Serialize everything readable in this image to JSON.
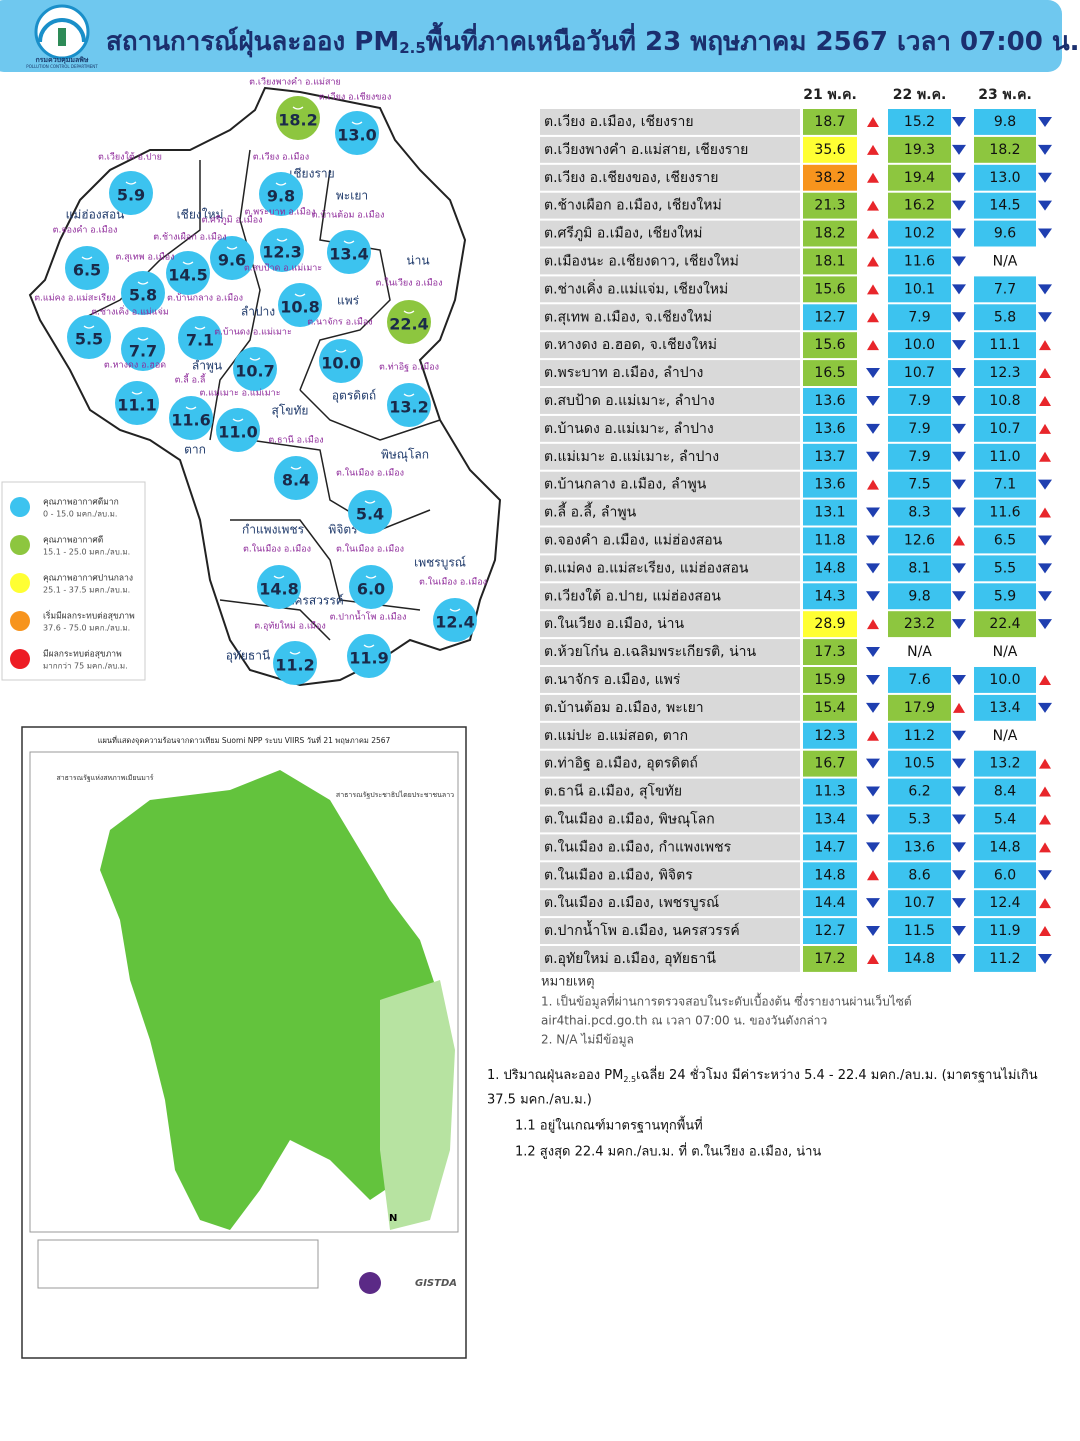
{
  "header": {
    "org_th": "กรมควบคุมมลพิษ",
    "org_en": "POLLUTION CONTROL DEPARTMENT",
    "title_pre": "สถานการณ์ฝุ่นละออง PM",
    "title_sub": "2.5",
    "title_post": "พื้นที่ภาคเหนือวันที่ 23 พฤษภาคม 2567 เวลา 07:00 น."
  },
  "provinces": [
    "เชียงราย",
    "พะเยา",
    "แม่ฮ่องสอน",
    "เชียงใหม่",
    "น่าน",
    "ลำปาง",
    "แพร่",
    "ลำพูน",
    "อุตรดิตถ์",
    "สุโขทัย",
    "ตาก",
    "พิษณุโลก",
    "กำแพงเพชร",
    "พิจิตร",
    "เพชรบูรณ์",
    "นครสวรรค์",
    "อุทัยธานี"
  ],
  "stations": [
    {
      "label": "ต.เวียงพางคำ อ.แม่สาย",
      "value": "18.2",
      "color": "#8dc63f"
    },
    {
      "label": "ต.เวียง อ.เชียงของ",
      "value": "13.0",
      "color": "#3cc3ef"
    },
    {
      "label": "ต.เวียงใต้ อ.ปาย",
      "value": "5.9",
      "color": "#3cc3ef"
    },
    {
      "label": "ต.เวียง อ.เมือง",
      "value": "9.8",
      "color": "#3cc3ef"
    },
    {
      "label": "ต.พระบาท อ.เมือง",
      "value": "12.3",
      "color": "#3cc3ef"
    },
    {
      "label": "ต.บ้านต้อม อ.เมือง",
      "value": "13.4",
      "color": "#3cc3ef"
    },
    {
      "label": "ต.ศรีภูมิ อ.เมือง",
      "value": "9.6",
      "color": "#3cc3ef"
    },
    {
      "label": "ต.ช้างเผือก อ.เมือง",
      "value": "14.5",
      "color": "#3cc3ef"
    },
    {
      "label": "ต.จองคำ อ.เมือง",
      "value": "6.5",
      "color": "#3cc3ef"
    },
    {
      "label": "ต.สุเทพ อ.เมือง",
      "value": "5.8",
      "color": "#3cc3ef"
    },
    {
      "label": "ต.สบป้าด อ.แม่เมาะ",
      "value": "10.8",
      "color": "#3cc3ef"
    },
    {
      "label": "ต.ในเวียง อ.เมือง",
      "value": "22.4",
      "color": "#8dc63f"
    },
    {
      "label": "ต.แม่คง อ.แม่สะเรียง",
      "value": "5.5",
      "color": "#3cc3ef"
    },
    {
      "label": "ต.บ้านกลาง อ.เมือง",
      "value": "7.1",
      "color": "#3cc3ef"
    },
    {
      "label": "ต.ช่างเคิ่ง อ.แม่แจ่ม",
      "value": "7.7",
      "color": "#3cc3ef"
    },
    {
      "label": "ต.นาจักร อ.เมือง",
      "value": "10.0",
      "color": "#3cc3ef"
    },
    {
      "label": "ต.บ้านดง อ.แม่เมาะ",
      "value": "10.7",
      "color": "#3cc3ef"
    },
    {
      "label": "ต.ท่าอิฐ อ.เมือง",
      "value": "13.2",
      "color": "#3cc3ef"
    },
    {
      "label": "ต.หางดง อ.ฮอด",
      "value": "11.1",
      "color": "#3cc3ef"
    },
    {
      "label": "ต.ลี้ อ.ลี้",
      "value": "11.6",
      "color": "#3cc3ef"
    },
    {
      "label": "ต.แม่เมาะ อ.แม่เมาะ",
      "value": "11.0",
      "color": "#3cc3ef"
    },
    {
      "label": "ต.ธานี อ.เมือง",
      "value": "8.4",
      "color": "#3cc3ef"
    },
    {
      "label": "ต.ในเมือง อ.เมือง",
      "value": "5.4",
      "color": "#3cc3ef"
    },
    {
      "label": "ต.ในเมือง อ.เมือง",
      "value": "14.8",
      "color": "#3cc3ef"
    },
    {
      "label": "ต.ในเมือง อ.เมือง",
      "value": "6.0",
      "color": "#3cc3ef"
    },
    {
      "label": "ต.ในเมือง อ.เมือง",
      "value": "12.4",
      "color": "#3cc3ef"
    },
    {
      "label": "ต.ปากน้ำโพ อ.เมือง",
      "value": "11.9",
      "color": "#3cc3ef"
    },
    {
      "label": "ต.อุทัยใหม่ อ.เมือง",
      "value": "11.2",
      "color": "#3cc3ef"
    }
  ],
  "legend": [
    {
      "title": "คุณภาพอากาศดีมาก",
      "range": "0 - 15.0 มคก./ลบ.ม.",
      "color": "#3cc3ef"
    },
    {
      "title": "คุณภาพอากาศดี",
      "range": "15.1 - 25.0 มคก./ลบ.ม.",
      "color": "#8dc63f"
    },
    {
      "title": "คุณภาพอากาศปานกลาง",
      "range": "25.1 - 37.5 มคก./ลบ.ม.",
      "color": "#ffff33"
    },
    {
      "title": "เริ่มมีผลกระทบต่อสุขภาพ",
      "range": "37.6 - 75.0 มคก./ลบ.ม.",
      "color": "#f7941d"
    },
    {
      "title": "มีผลกระทบต่อสุขภาพ",
      "range": "มากกว่า 75 มคก./ลบ.ม.",
      "color": "#ed1c24"
    }
  ],
  "table": {
    "headers": [
      "21 พ.ค.",
      "22 พ.ค.",
      "23 พ.ค."
    ],
    "rows": [
      {
        "name": "ต.เวียง อ.เมือง, เชียงราย",
        "values": [
          "18.7",
          "15.2",
          "9.8"
        ],
        "colors": [
          "#8dc63f",
          "#3cc3ef",
          "#3cc3ef"
        ],
        "trends": [
          "up",
          "down",
          "down"
        ]
      },
      {
        "name": "ต.เวียงพางคำ อ.แม่สาย, เชียงราย",
        "values": [
          "35.6",
          "19.3",
          "18.2"
        ],
        "colors": [
          "#ffff33",
          "#8dc63f",
          "#8dc63f"
        ],
        "trends": [
          "up",
          "down",
          "down"
        ]
      },
      {
        "name": "ต.เวียง อ.เชียงของ, เชียงราย",
        "values": [
          "38.2",
          "19.4",
          "13.0"
        ],
        "colors": [
          "#f7941d",
          "#8dc63f",
          "#3cc3ef"
        ],
        "trends": [
          "up",
          "down",
          "down"
        ]
      },
      {
        "name": "ต.ช้างเผือก อ.เมือง, เชียงใหม่",
        "values": [
          "21.3",
          "16.2",
          "14.5"
        ],
        "colors": [
          "#8dc63f",
          "#8dc63f",
          "#3cc3ef"
        ],
        "trends": [
          "up",
          "down",
          "down"
        ]
      },
      {
        "name": "ต.ศรีภูมิ อ.เมือง, เชียงใหม่",
        "values": [
          "18.2",
          "10.2",
          "9.6"
        ],
        "colors": [
          "#8dc63f",
          "#3cc3ef",
          "#3cc3ef"
        ],
        "trends": [
          "up",
          "down",
          "down"
        ]
      },
      {
        "name": "ต.เมืองนะ อ.เชียงดาว, เชียงใหม่",
        "values": [
          "18.1",
          "11.6",
          "N/A"
        ],
        "colors": [
          "#8dc63f",
          "#3cc3ef",
          "#ffffff"
        ],
        "trends": [
          "up",
          "down",
          null
        ]
      },
      {
        "name": "ต.ช่างเคิ่ง อ.แม่แจ่ม, เชียงใหม่",
        "values": [
          "15.6",
          "10.1",
          "7.7"
        ],
        "colors": [
          "#8dc63f",
          "#3cc3ef",
          "#3cc3ef"
        ],
        "trends": [
          "up",
          "down",
          "down"
        ]
      },
      {
        "name": "ต.สุเทพ  อ.เมือง, จ.เชียงใหม่",
        "values": [
          "12.7",
          "7.9",
          "5.8"
        ],
        "colors": [
          "#3cc3ef",
          "#3cc3ef",
          "#3cc3ef"
        ],
        "trends": [
          "up",
          "down",
          "down"
        ]
      },
      {
        "name": "ต.หางดง อ.ฮอด, จ.เชียงใหม่",
        "values": [
          "15.6",
          "10.0",
          "11.1"
        ],
        "colors": [
          "#8dc63f",
          "#3cc3ef",
          "#3cc3ef"
        ],
        "trends": [
          "up",
          "down",
          "up"
        ]
      },
      {
        "name": "ต.พระบาท อ.เมือง, ลำปาง",
        "values": [
          "16.5",
          "10.7",
          "12.3"
        ],
        "colors": [
          "#8dc63f",
          "#3cc3ef",
          "#3cc3ef"
        ],
        "trends": [
          "down",
          "down",
          "up"
        ]
      },
      {
        "name": "ต.สบป้าด อ.แม่เมาะ, ลำปาง",
        "values": [
          "13.6",
          "7.9",
          "10.8"
        ],
        "colors": [
          "#3cc3ef",
          "#3cc3ef",
          "#3cc3ef"
        ],
        "trends": [
          "down",
          "down",
          "up"
        ]
      },
      {
        "name": "ต.บ้านดง อ.แม่เมาะ, ลำปาง",
        "values": [
          "13.6",
          "7.9",
          "10.7"
        ],
        "colors": [
          "#3cc3ef",
          "#3cc3ef",
          "#3cc3ef"
        ],
        "trends": [
          "down",
          "down",
          "up"
        ]
      },
      {
        "name": "ต.แม่เมาะ อ.แม่เมาะ, ลำปาง",
        "values": [
          "13.7",
          "7.9",
          "11.0"
        ],
        "colors": [
          "#3cc3ef",
          "#3cc3ef",
          "#3cc3ef"
        ],
        "trends": [
          "down",
          "down",
          "up"
        ]
      },
      {
        "name": "ต.บ้านกลาง อ.เมือง, ลำพูน",
        "values": [
          "13.6",
          "7.5",
          "7.1"
        ],
        "colors": [
          "#3cc3ef",
          "#3cc3ef",
          "#3cc3ef"
        ],
        "trends": [
          "up",
          "down",
          "down"
        ]
      },
      {
        "name": "ต.ลี้ อ.ลี้, ลำพูน",
        "values": [
          "13.1",
          "8.3",
          "11.6"
        ],
        "colors": [
          "#3cc3ef",
          "#3cc3ef",
          "#3cc3ef"
        ],
        "trends": [
          "down",
          "down",
          "up"
        ]
      },
      {
        "name": "ต.จองคำ อ.เมือง, แม่ฮ่องสอน",
        "values": [
          "11.8",
          "12.6",
          "6.5"
        ],
        "colors": [
          "#3cc3ef",
          "#3cc3ef",
          "#3cc3ef"
        ],
        "trends": [
          "down",
          "up",
          "down"
        ]
      },
      {
        "name": "ต.แม่คง อ.แม่สะเรียง, แม่ฮ่องสอน",
        "values": [
          "14.8",
          "8.1",
          "5.5"
        ],
        "colors": [
          "#3cc3ef",
          "#3cc3ef",
          "#3cc3ef"
        ],
        "trends": [
          "down",
          "down",
          "down"
        ]
      },
      {
        "name": "ต.เวียงใต้ อ.ปาย, แม่ฮ่องสอน",
        "values": [
          "14.3",
          "9.8",
          "5.9"
        ],
        "colors": [
          "#3cc3ef",
          "#3cc3ef",
          "#3cc3ef"
        ],
        "trends": [
          "down",
          "down",
          "down"
        ]
      },
      {
        "name": "ต.ในเวียง อ.เมือง, น่าน",
        "values": [
          "28.9",
          "23.2",
          "22.4"
        ],
        "colors": [
          "#ffff33",
          "#8dc63f",
          "#8dc63f"
        ],
        "trends": [
          "up",
          "down",
          "down"
        ]
      },
      {
        "name": "ต.ห้วยโก๋น อ.เฉลิมพระเกียรติ, น่าน",
        "values": [
          "17.3",
          "N/A",
          "N/A"
        ],
        "colors": [
          "#8dc63f",
          "#ffffff",
          "#ffffff"
        ],
        "trends": [
          "down",
          null,
          null
        ]
      },
      {
        "name": "ต.นาจักร อ.เมือง, แพร่",
        "values": [
          "15.9",
          "7.6",
          "10.0"
        ],
        "colors": [
          "#8dc63f",
          "#3cc3ef",
          "#3cc3ef"
        ],
        "trends": [
          "down",
          "down",
          "up"
        ]
      },
      {
        "name": "ต.บ้านต้อม อ.เมือง, พะเยา",
        "values": [
          "15.4",
          "17.9",
          "13.4"
        ],
        "colors": [
          "#8dc63f",
          "#8dc63f",
          "#3cc3ef"
        ],
        "trends": [
          "down",
          "up",
          "down"
        ]
      },
      {
        "name": "ต.แม่ปะ อ.แม่สอด, ตาก",
        "values": [
          "12.3",
          "11.2",
          "N/A"
        ],
        "colors": [
          "#3cc3ef",
          "#3cc3ef",
          "#ffffff"
        ],
        "trends": [
          "up",
          "down",
          null
        ]
      },
      {
        "name": "ต.ท่าอิฐ อ.เมือง, อุตรดิตถ์",
        "values": [
          "16.7",
          "10.5",
          "13.2"
        ],
        "colors": [
          "#8dc63f",
          "#3cc3ef",
          "#3cc3ef"
        ],
        "trends": [
          "down",
          "down",
          "up"
        ]
      },
      {
        "name": "ต.ธานี อ.เมือง, สุโขทัย",
        "values": [
          "11.3",
          "6.2",
          "8.4"
        ],
        "colors": [
          "#3cc3ef",
          "#3cc3ef",
          "#3cc3ef"
        ],
        "trends": [
          "down",
          "down",
          "up"
        ]
      },
      {
        "name": "ต.ในเมือง อ.เมือง, พิษณุโลก",
        "values": [
          "13.4",
          "5.3",
          "5.4"
        ],
        "colors": [
          "#3cc3ef",
          "#3cc3ef",
          "#3cc3ef"
        ],
        "trends": [
          "down",
          "down",
          "up"
        ]
      },
      {
        "name": "ต.ในเมือง อ.เมือง, กำแพงเพชร",
        "values": [
          "14.7",
          "13.6",
          "14.8"
        ],
        "colors": [
          "#3cc3ef",
          "#3cc3ef",
          "#3cc3ef"
        ],
        "trends": [
          "down",
          "down",
          "up"
        ]
      },
      {
        "name": "ต.ในเมือง อ.เมือง, พิจิตร",
        "values": [
          "14.8",
          "8.6",
          "6.0"
        ],
        "colors": [
          "#3cc3ef",
          "#3cc3ef",
          "#3cc3ef"
        ],
        "trends": [
          "up",
          "down",
          "down"
        ]
      },
      {
        "name": "ต.ในเมือง อ.เมือง, เพชรบูรณ์",
        "values": [
          "14.4",
          "10.7",
          "12.4"
        ],
        "colors": [
          "#3cc3ef",
          "#3cc3ef",
          "#3cc3ef"
        ],
        "trends": [
          "down",
          "down",
          "up"
        ]
      },
      {
        "name": "ต.ปากน้ำโพ อ.เมือง, นครสวรรค์",
        "values": [
          "12.7",
          "11.5",
          "11.9"
        ],
        "colors": [
          "#3cc3ef",
          "#3cc3ef",
          "#3cc3ef"
        ],
        "trends": [
          "down",
          "down",
          "up"
        ]
      },
      {
        "name": "ต.อุทัยใหม่ อ.เมือง, อุทัยธานี",
        "values": [
          "17.2",
          "14.8",
          "11.2"
        ],
        "colors": [
          "#8dc63f",
          "#3cc3ef",
          "#3cc3ef"
        ],
        "trends": [
          "up",
          "down",
          "down"
        ]
      }
    ]
  },
  "notes": {
    "title": "หมายเหตุ",
    "lines": [
      "1. เป็นข้อมูลที่ผ่านการตรวจสอบในระดับเบื้องต้น ซึ่งรายงานผ่านเว็บไซต์",
      "air4thai.pcd.go.th  ณ  เวลา 07:00  น.  ของวันดังกล่าว",
      "2.  N/A  ไม่มีข้อมูล"
    ]
  },
  "summary": {
    "line1_pre": "1. ปริมาณฝุ่นละออง PM",
    "line1_sub": "2.5",
    "line1_post": "เฉลี่ย 24 ชั่วโมง มีค่าระหว่าง 5.4 - 22.4 มคก./ลบ.ม. (มาตรฐานไม่เกิน",
    "line1_cont": "37.5 มคก./ลบ.ม.)",
    "item1": "1.1 อยู่ในเกณฑ์มาตรฐานทุกพื้นที่",
    "item2": "1.2 สูงสุด 22.4 มคก./ลบ.ม. ที่ ต.ในเวียง อ.เมือง, น่าน"
  },
  "hotspot_map": {
    "title": "แผนที่แสดงจุดความร้อนจากดาวเทียม Suomi NPP ระบบ VIIRS  วันที่ 21 พฤษภาคม 2567",
    "myanmar": "สาธารณรัฐแห่งสหภาพเมียนมาร์",
    "laos": "สาธารณรัฐประชาธิปไตยประชาชนลาว",
    "agency": "GISTDA"
  }
}
